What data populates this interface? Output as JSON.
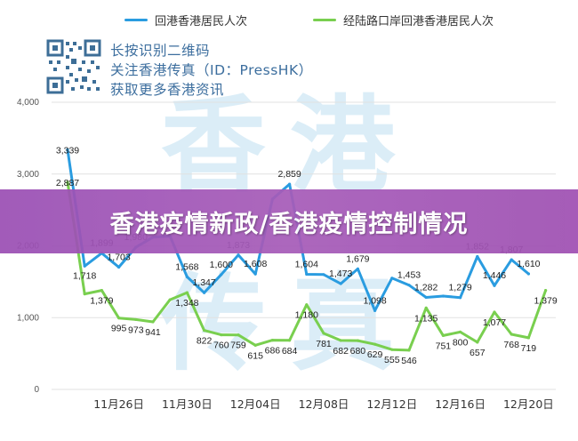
{
  "legend": {
    "series1_label": "回港香港居民人次",
    "series2_label": "经陆路口岸回港香港居民人次"
  },
  "watermark": {
    "line1": "长按识别二维码",
    "line2": "关注香港传真（ID：PressHK）",
    "line3": "获取更多香港资讯",
    "logo_text": "香港传真"
  },
  "banner": {
    "title": "香港疫情新政/香港疫情控制情况"
  },
  "colors": {
    "series1": "#2a9ce0",
    "series2": "#79cf4f",
    "banner": "#a057b5"
  },
  "chart_data": {
    "type": "line",
    "ylim": [
      0,
      4000
    ],
    "yticks": [
      "0",
      "1,000",
      "2,000",
      "3,000",
      "4,000"
    ],
    "xticks": [
      "11月26日",
      "11月30日",
      "12月04日",
      "12月08日",
      "12月12日",
      "12月16日",
      "12月20日"
    ],
    "xtick_index": [
      3,
      7,
      11,
      15,
      19,
      23,
      27
    ],
    "series": [
      {
        "name": "回港香港居民人次",
        "values": [
          3339,
          1718,
          1899,
          1703,
          1980,
          2120,
          2135,
          1568,
          1347,
          1600,
          1873,
          1608,
          2650,
          2859,
          1604,
          1600,
          1473,
          1679,
          1098,
          1550,
          1453,
          1282,
          1300,
          1279,
          1852,
          1446,
          1807,
          1610
        ],
        "labels": [
          "3,339",
          "1,718",
          "1,899",
          "1,703",
          "1,980",
          "",
          "2,135",
          "1,568",
          "1,347",
          "1,600",
          "1,873",
          "1,608",
          "",
          "2,859",
          "1,604",
          "",
          "1,473",
          "1,679",
          "1,098",
          "",
          "1,453",
          "1,282",
          "",
          "1,279",
          "1,852",
          "1,446",
          "1,807",
          "1,610"
        ]
      },
      {
        "name": "经陆路口岸回港香港居民人次",
        "values": [
          2887,
          1330,
          1379,
          995,
          973,
          941,
          1250,
          1348,
          822,
          760,
          759,
          615,
          686,
          684,
          1180,
          781,
          682,
          680,
          629,
          555,
          546,
          1135,
          751,
          800,
          657,
          1077,
          768,
          719,
          1379
        ],
        "labels": [
          "2,887",
          "",
          "1,379",
          "995",
          "973",
          "941",
          "",
          "1,348",
          "822",
          "760",
          "759",
          "615",
          "686",
          "684",
          "1,180",
          "781",
          "682",
          "680",
          "629",
          "555",
          "546",
          "1,135",
          "751",
          "800",
          "657",
          "1,077",
          "768",
          "719",
          "1,379"
        ]
      }
    ]
  }
}
